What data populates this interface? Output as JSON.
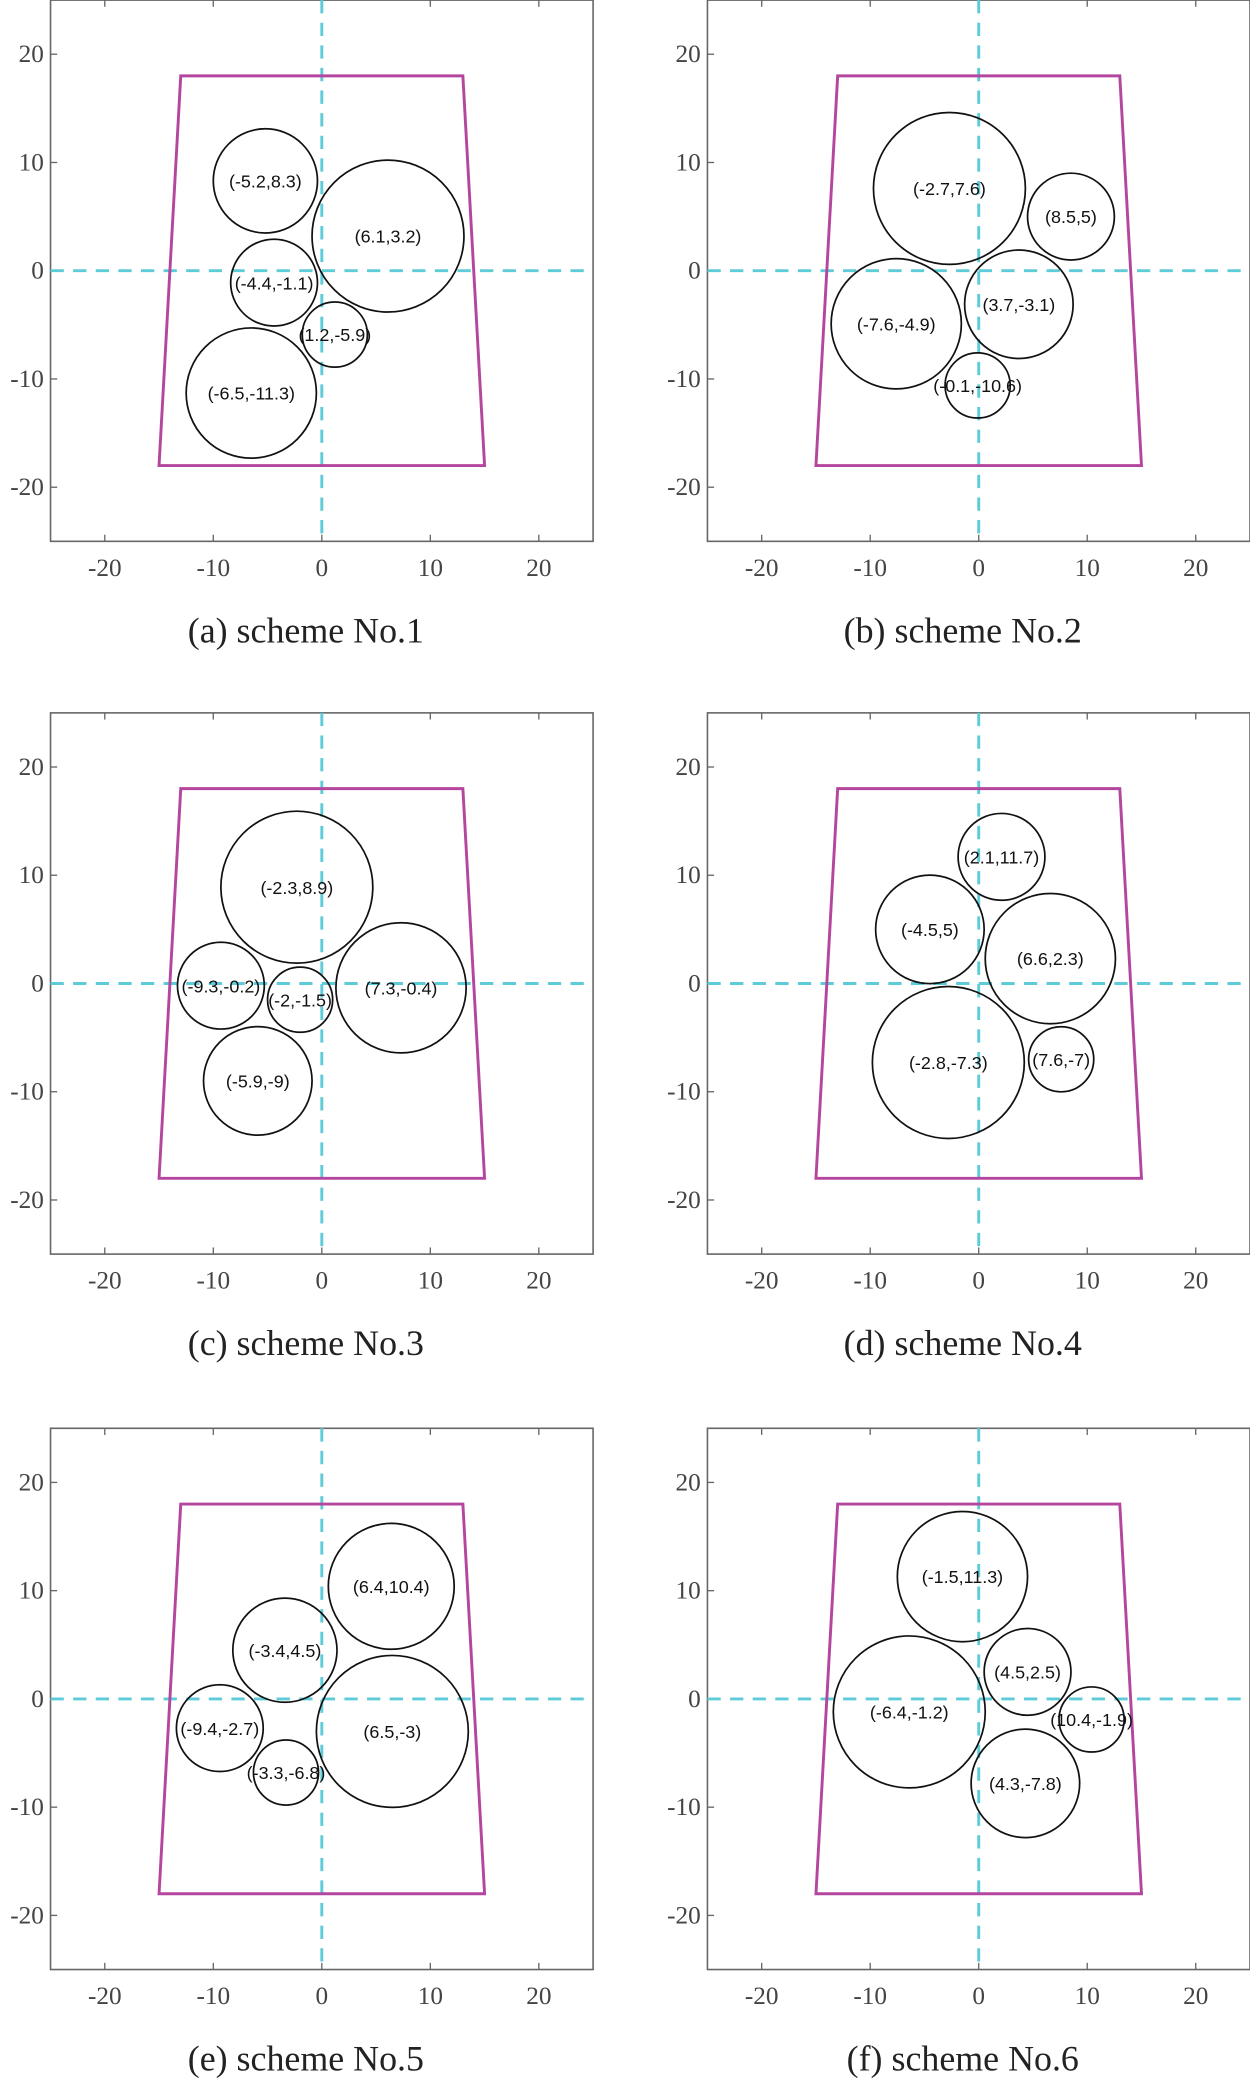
{
  "colors": {
    "boundary": "#b5469f",
    "axis_lines": "#5ecbd8",
    "circles": "#111111",
    "frame": "#666666"
  },
  "chart_data": [
    {
      "type": "scatter",
      "title": "(a) scheme No.1",
      "xlim": [
        -25,
        25
      ],
      "ylim": [
        -25,
        25
      ],
      "xticks": [
        -20,
        -10,
        0,
        10,
        20
      ],
      "yticks": [
        -20,
        -10,
        0,
        10,
        20
      ],
      "boundary": [
        [
          -13,
          18
        ],
        [
          13,
          18
        ],
        [
          15,
          -18
        ],
        [
          -15,
          -18
        ]
      ],
      "circles": [
        {
          "x": -5.2,
          "y": 8.3,
          "r": 4.8,
          "label": "(-5.2,8.3)"
        },
        {
          "x": 6.1,
          "y": 3.2,
          "r": 7,
          "label": "(6.1,3.2)"
        },
        {
          "x": -4.4,
          "y": -1.1,
          "r": 4,
          "label": "(-4.4,-1.1)"
        },
        {
          "x": 1.2,
          "y": -5.9,
          "r": 3,
          "label": "(1.2,-5.9)"
        },
        {
          "x": -6.5,
          "y": -11.3,
          "r": 6,
          "label": "(-6.5,-11.3)"
        }
      ]
    },
    {
      "type": "scatter",
      "title": "(b) scheme No.2",
      "xlim": [
        -25,
        25
      ],
      "ylim": [
        -25,
        25
      ],
      "xticks": [
        -20,
        -10,
        0,
        10,
        20
      ],
      "yticks": [
        -20,
        -10,
        0,
        10,
        20
      ],
      "boundary": [
        [
          -13,
          18
        ],
        [
          13,
          18
        ],
        [
          15,
          -18
        ],
        [
          -15,
          -18
        ]
      ],
      "circles": [
        {
          "x": -2.7,
          "y": 7.6,
          "r": 7,
          "label": "(-2.7,7.6)"
        },
        {
          "x": 8.5,
          "y": 5,
          "r": 4,
          "label": "(8.5,5)"
        },
        {
          "x": -7.6,
          "y": -4.9,
          "r": 6,
          "label": "(-7.6,-4.9)"
        },
        {
          "x": 3.7,
          "y": -3.1,
          "r": 5,
          "label": "(3.7,-3.1)"
        },
        {
          "x": -0.1,
          "y": -10.6,
          "r": 3,
          "label": "(-0.1,-10.6)"
        }
      ]
    },
    {
      "type": "scatter",
      "title": "(c) scheme No.3",
      "xlim": [
        -25,
        25
      ],
      "ylim": [
        -25,
        25
      ],
      "xticks": [
        -20,
        -10,
        0,
        10,
        20
      ],
      "yticks": [
        -20,
        -10,
        0,
        10,
        20
      ],
      "boundary": [
        [
          -13,
          18
        ],
        [
          13,
          18
        ],
        [
          15,
          -18
        ],
        [
          -15,
          -18
        ]
      ],
      "circles": [
        {
          "x": -2.3,
          "y": 8.9,
          "r": 7,
          "label": "(-2.3,8.9)"
        },
        {
          "x": -9.3,
          "y": -0.2,
          "r": 4,
          "label": "(-9.3,-0.2)"
        },
        {
          "x": -2,
          "y": -1.5,
          "r": 3,
          "label": "(-2,-1.5)"
        },
        {
          "x": 7.3,
          "y": -0.4,
          "r": 6,
          "label": "(7.3,-0.4)"
        },
        {
          "x": -5.9,
          "y": -9,
          "r": 5,
          "label": "(-5.9,-9)"
        }
      ]
    },
    {
      "type": "scatter",
      "title": "(d) scheme No.4",
      "xlim": [
        -25,
        25
      ],
      "ylim": [
        -25,
        25
      ],
      "xticks": [
        -20,
        -10,
        0,
        10,
        20
      ],
      "yticks": [
        -20,
        -10,
        0,
        10,
        20
      ],
      "boundary": [
        [
          -13,
          18
        ],
        [
          13,
          18
        ],
        [
          15,
          -18
        ],
        [
          -15,
          -18
        ]
      ],
      "circles": [
        {
          "x": 2.1,
          "y": 11.7,
          "r": 4,
          "label": "(2.1,11.7)"
        },
        {
          "x": -4.5,
          "y": 5,
          "r": 5,
          "label": "(-4.5,5)"
        },
        {
          "x": 6.6,
          "y": 2.3,
          "r": 6,
          "label": "(6.6,2.3)"
        },
        {
          "x": -2.8,
          "y": -7.3,
          "r": 7,
          "label": "(-2.8,-7.3)"
        },
        {
          "x": 7.6,
          "y": -7,
          "r": 3,
          "label": "(7.6,-7)"
        }
      ]
    },
    {
      "type": "scatter",
      "title": "(e) scheme No.5",
      "xlim": [
        -25,
        25
      ],
      "ylim": [
        -25,
        25
      ],
      "xticks": [
        -20,
        -10,
        0,
        10,
        20
      ],
      "yticks": [
        -20,
        -10,
        0,
        10,
        20
      ],
      "boundary": [
        [
          -13,
          18
        ],
        [
          13,
          18
        ],
        [
          15,
          -18
        ],
        [
          -15,
          -18
        ]
      ],
      "circles": [
        {
          "x": 6.4,
          "y": 10.4,
          "r": 5.8,
          "label": "(6.4,10.4)"
        },
        {
          "x": -3.4,
          "y": 4.5,
          "r": 4.8,
          "label": "(-3.4,4.5)"
        },
        {
          "x": -9.4,
          "y": -2.7,
          "r": 4,
          "label": "(-9.4,-2.7)"
        },
        {
          "x": -3.3,
          "y": -6.8,
          "r": 3,
          "label": "(-3.3,-6.8)"
        },
        {
          "x": 6.5,
          "y": -3,
          "r": 7,
          "label": "(6.5,-3)"
        }
      ]
    },
    {
      "type": "scatter",
      "title": "(f) scheme No.6",
      "xlim": [
        -25,
        25
      ],
      "ylim": [
        -25,
        25
      ],
      "xticks": [
        -20,
        -10,
        0,
        10,
        20
      ],
      "yticks": [
        -20,
        -10,
        0,
        10,
        20
      ],
      "boundary": [
        [
          -13,
          18
        ],
        [
          13,
          18
        ],
        [
          15,
          -18
        ],
        [
          -15,
          -18
        ]
      ],
      "circles": [
        {
          "x": -1.5,
          "y": 11.3,
          "r": 6,
          "label": "(-1.5,11.3)"
        },
        {
          "x": 4.5,
          "y": 2.5,
          "r": 4,
          "label": "(4.5,2.5)"
        },
        {
          "x": 10.4,
          "y": -1.9,
          "r": 3,
          "label": "(10.4,-1.9)"
        },
        {
          "x": -6.4,
          "y": -1.2,
          "r": 7,
          "label": "(-6.4,-1.2)"
        },
        {
          "x": 4.3,
          "y": -7.8,
          "r": 5,
          "label": "(4.3,-7.8)"
        }
      ]
    }
  ]
}
